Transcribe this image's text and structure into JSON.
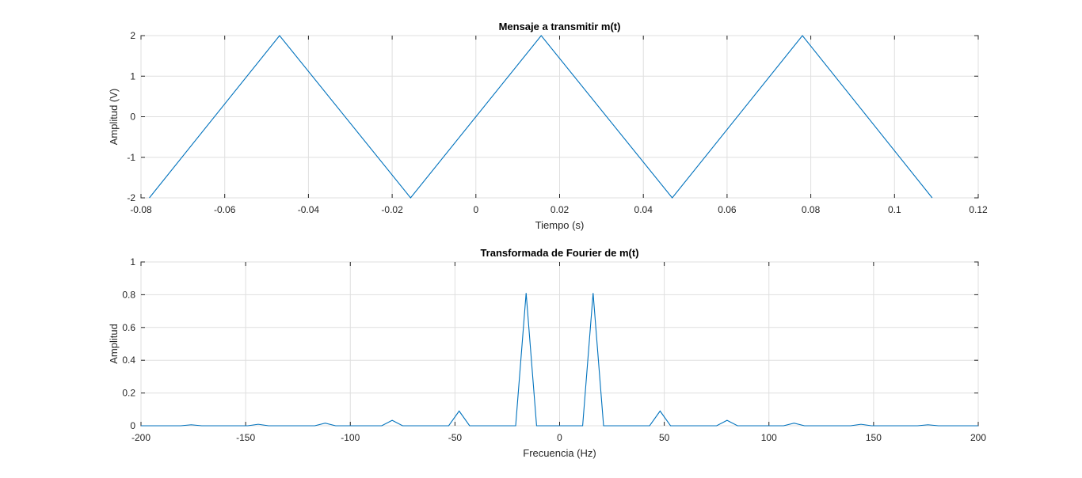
{
  "chart_data": [
    {
      "type": "line",
      "title": "Mensaje a transmitir m(t)",
      "xlabel": "Tiempo (s)",
      "ylabel": "Amplitud (V)",
      "xlim": [
        -0.08,
        0.12
      ],
      "ylim": [
        -2,
        2
      ],
      "xticks": [
        -0.08,
        -0.06,
        -0.04,
        -0.02,
        0,
        0.02,
        0.04,
        0.06,
        0.08,
        0.1,
        0.12
      ],
      "xtick_labels": [
        "-0.08",
        "-0.06",
        "-0.04",
        "-0.02",
        "0",
        "0.02",
        "0.04",
        "0.06",
        "0.08",
        "0.1",
        "0.12"
      ],
      "yticks": [
        -2,
        -1,
        0,
        1,
        2
      ],
      "ytick_labels": [
        "-2",
        "-1",
        "0",
        "1",
        "2"
      ],
      "grid": true,
      "color": "#0072bd",
      "series": [
        {
          "x": [
            -0.078,
            -0.0469,
            -0.0156,
            0.0156,
            0.0469,
            0.078,
            0.109
          ],
          "values": [
            -2,
            2,
            -2,
            2,
            -2,
            2,
            -2
          ]
        }
      ]
    },
    {
      "type": "line",
      "title": "Transformada de Fourier de m(t)",
      "xlabel": "Frecuencia (Hz)",
      "ylabel": "Amplitud",
      "xlim": [
        -200,
        200
      ],
      "ylim": [
        0,
        1
      ],
      "xticks": [
        -200,
        -150,
        -100,
        -50,
        0,
        50,
        100,
        150,
        200
      ],
      "xtick_labels": [
        "-200",
        "-150",
        "-100",
        "-50",
        "0",
        "50",
        "100",
        "150",
        "200"
      ],
      "yticks": [
        0,
        0.2,
        0.4,
        0.6,
        0.8,
        1
      ],
      "ytick_labels": [
        "0",
        "0.2",
        "0.4",
        "0.6",
        "0.8",
        "1"
      ],
      "grid": true,
      "color": "#0072bd",
      "series": [
        {
          "x": [
            -200,
            -181,
            -176,
            -171,
            -149,
            -144,
            -139,
            -117,
            -112,
            -107,
            -85,
            -80,
            -75,
            -53,
            -48,
            -43,
            -21,
            -16,
            -11,
            11,
            16,
            21,
            43,
            48,
            53,
            75,
            80,
            85,
            107,
            112,
            117,
            139,
            144,
            149,
            171,
            176,
            181,
            200
          ],
          "values": [
            0,
            0,
            0.006,
            0,
            0,
            0.009,
            0,
            0,
            0.016,
            0,
            0,
            0.033,
            0,
            0,
            0.09,
            0,
            0,
            0.81,
            0,
            0,
            0.81,
            0,
            0,
            0.09,
            0,
            0,
            0.033,
            0,
            0,
            0.016,
            0,
            0,
            0.009,
            0,
            0,
            0.006,
            0,
            0
          ]
        }
      ]
    }
  ]
}
